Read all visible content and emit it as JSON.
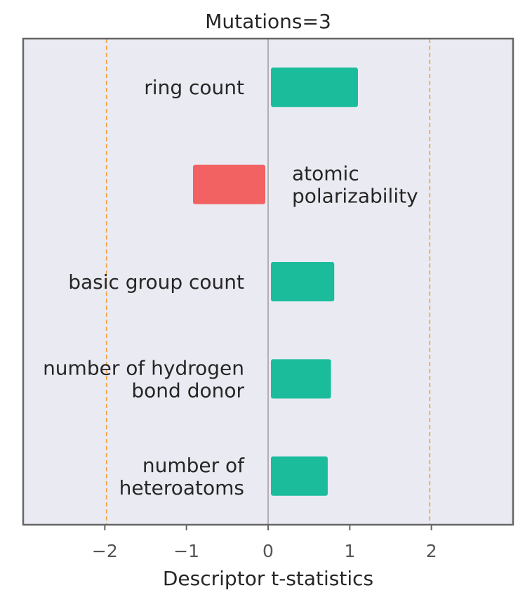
{
  "chart_data": {
    "type": "bar",
    "orientation": "horizontal",
    "title": "Mutations=3",
    "xlabel": "Descriptor t-statistics",
    "ylabel": "",
    "xlim": [
      -3,
      3
    ],
    "xticks": [
      -2,
      -1,
      0,
      1,
      2
    ],
    "xtick_labels": [
      "−2",
      "−1",
      "0",
      "1",
      "2"
    ],
    "reference_lines": [
      -1.98,
      0,
      1.98
    ],
    "grid": false,
    "categories": [
      "ring count",
      "atomic polarizability",
      "basic group count",
      "number of hydrogen bond donor",
      "number of heteroatoms"
    ],
    "category_lines": [
      [
        "ring count"
      ],
      [
        "atomic",
        "polarizability"
      ],
      [
        "basic group count"
      ],
      [
        "number of hydrogen",
        "bond donor"
      ],
      [
        "number of",
        "heteroatoms"
      ]
    ],
    "values": [
      1.1,
      -0.92,
      0.81,
      0.77,
      0.73
    ],
    "colors": {
      "positive": "#1abc9c",
      "negative": "#f26262",
      "background": "#eaeaf2",
      "reference_line": "#f0a040",
      "zero_line": "#888888",
      "frame": "#666666"
    }
  }
}
